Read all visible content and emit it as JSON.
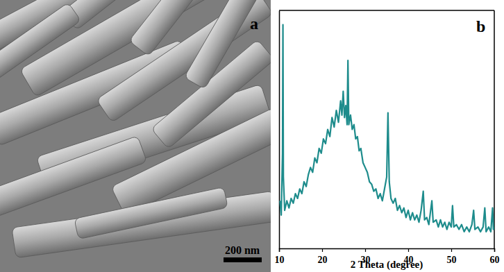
{
  "image": {
    "panel_label": "a",
    "scale_bar": "200 nm"
  },
  "chart_data": {
    "type": "line",
    "panel_label": "b",
    "x_label": "2 Theta (degree)",
    "color": "#1e8c8c",
    "tick_labels": "x",
    "xlim": [
      10,
      60
    ],
    "xticks": [
      10,
      20,
      30,
      40,
      50,
      60
    ],
    "ylim": [
      0,
      100
    ],
    "x": [
      10.2,
      10.5,
      10.8,
      10.9,
      11.0,
      11.3,
      11.8,
      12.3,
      12.8,
      13.3,
      13.8,
      14.3,
      14.8,
      15.3,
      15.8,
      16.3,
      16.8,
      17.3,
      17.8,
      18.3,
      18.8,
      19.3,
      19.8,
      20.3,
      20.8,
      21.3,
      21.8,
      22.3,
      22.8,
      23.3,
      23.8,
      24.3,
      24.6,
      24.9,
      25.2,
      25.5,
      25.8,
      26.0,
      26.2,
      26.6,
      27.0,
      27.4,
      27.8,
      28.2,
      28.6,
      29.0,
      29.5,
      30.0,
      30.5,
      31.0,
      31.5,
      32.0,
      32.5,
      33.0,
      33.5,
      34.0,
      34.5,
      35.0,
      35.3,
      35.6,
      36.0,
      36.5,
      37.0,
      37.5,
      38.0,
      38.5,
      39.0,
      39.5,
      40.0,
      40.5,
      41.0,
      41.5,
      42.0,
      42.5,
      43.0,
      43.5,
      43.8,
      44.3,
      44.8,
      45.5,
      45.8,
      46.5,
      47.0,
      47.5,
      48.0,
      48.5,
      49.0,
      49.5,
      50.0,
      50.3,
      50.6,
      51.2,
      51.8,
      52.4,
      53.0,
      53.6,
      54.2,
      54.8,
      55.2,
      55.5,
      56.2,
      56.8,
      57.4,
      57.8,
      58.1,
      58.7,
      59.2,
      59.6,
      59.8,
      60.0
    ],
    "values": [
      20,
      14,
      40,
      94,
      30,
      16,
      20,
      17,
      21,
      19,
      23,
      21,
      25,
      23,
      28,
      26,
      31,
      34,
      32,
      38,
      36,
      42,
      40,
      46,
      44,
      50,
      47,
      55,
      51,
      58,
      53,
      62,
      56,
      66,
      55,
      60,
      52,
      79,
      52,
      56,
      50,
      52,
      46,
      47,
      41,
      42,
      36,
      34,
      32,
      28,
      27,
      24,
      25,
      21,
      23,
      20,
      25,
      30,
      57,
      28,
      21,
      19,
      21,
      16,
      18,
      15,
      17,
      13,
      16,
      12,
      15,
      12,
      14,
      11,
      16,
      24,
      12,
      13,
      10,
      20,
      11,
      12,
      9,
      12,
      9,
      11,
      8,
      11,
      9,
      18,
      9,
      10,
      8,
      10,
      7,
      9,
      7,
      10,
      16,
      8,
      9,
      7,
      9,
      17,
      7,
      9,
      7,
      17,
      8,
      9
    ]
  }
}
